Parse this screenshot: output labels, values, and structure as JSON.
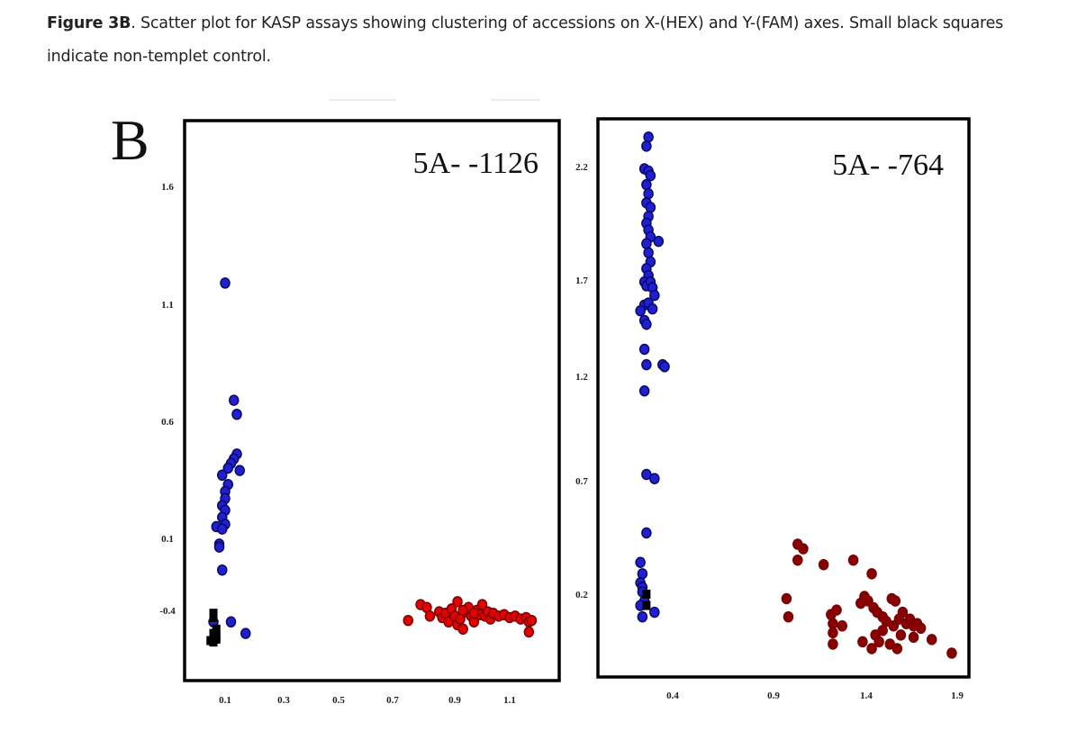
{
  "caption": {
    "label": "Figure 3B",
    "text": ". Scatter plot for KASP assays showing clustering of accessions on X-(HEX) and Y-(FAM) axes. Small black squares indicate non-templet control."
  },
  "panel_letter": "B",
  "colors": {
    "allele_fam": "#1f1fd6",
    "allele_fam_dark": "#0d0d7a",
    "allele_hex": "#e60000",
    "allele_hex_dark": "#8b0000",
    "ntc": "#000000",
    "frame": "#000000"
  },
  "chart_data": [
    {
      "type": "scatter",
      "title": "5A- -1126",
      "xlabel": "X-(HEX)",
      "ylabel": "Y-(FAM)",
      "x_ticks": [
        "0.1",
        "0.3",
        "0.5",
        "0.7",
        "0.9",
        "1.1"
      ],
      "y_ticks": [
        "1.6",
        "1.1",
        "0.6",
        "0.1",
        "-0.4"
      ],
      "xlim": [
        0.05,
        1.25
      ],
      "ylim": [
        -0.6,
        1.85
      ],
      "grid": false,
      "legend": "none",
      "series": [
        {
          "name": "FAM allele (blue)",
          "color_key": "allele_fam",
          "marker": "circle",
          "points": [
            [
              0.1,
              1.19
            ],
            [
              0.13,
              0.69
            ],
            [
              0.14,
              0.63
            ],
            [
              0.14,
              0.46
            ],
            [
              0.13,
              0.44
            ],
            [
              0.12,
              0.42
            ],
            [
              0.11,
              0.4
            ],
            [
              0.15,
              0.39
            ],
            [
              0.09,
              0.37
            ],
            [
              0.11,
              0.33
            ],
            [
              0.1,
              0.3
            ],
            [
              0.1,
              0.27
            ],
            [
              0.09,
              0.24
            ],
            [
              0.1,
              0.22
            ],
            [
              0.09,
              0.19
            ],
            [
              0.1,
              0.16
            ],
            [
              0.07,
              0.15
            ],
            [
              0.09,
              0.14
            ],
            [
              0.08,
              0.06
            ],
            [
              0.08,
              0.04
            ],
            [
              0.09,
              -0.12
            ],
            [
              0.06,
              -0.48
            ],
            [
              0.12,
              -0.48
            ],
            [
              0.17,
              -0.56
            ]
          ]
        },
        {
          "name": "HEX allele (red)",
          "color_key": "allele_hex",
          "marker": "circle",
          "points": [
            [
              0.75,
              -0.47
            ],
            [
              0.79,
              -0.36
            ],
            [
              0.81,
              -0.38
            ],
            [
              0.82,
              -0.44
            ],
            [
              0.85,
              -0.41
            ],
            [
              0.86,
              -0.45
            ],
            [
              0.87,
              -0.42
            ],
            [
              0.88,
              -0.48
            ],
            [
              0.89,
              -0.39
            ],
            [
              0.9,
              -0.44
            ],
            [
              0.91,
              -0.34
            ],
            [
              0.91,
              -0.5
            ],
            [
              0.92,
              -0.46
            ],
            [
              0.93,
              -0.53
            ],
            [
              0.94,
              -0.41
            ],
            [
              0.95,
              -0.38
            ],
            [
              0.96,
              -0.44
            ],
            [
              0.97,
              -0.48
            ],
            [
              0.98,
              -0.4
            ],
            [
              0.99,
              -0.43
            ],
            [
              1.0,
              -0.36
            ],
            [
              1.01,
              -0.44
            ],
            [
              1.02,
              -0.41
            ],
            [
              1.03,
              -0.46
            ],
            [
              1.04,
              -0.42
            ],
            [
              1.06,
              -0.44
            ],
            [
              1.08,
              -0.43
            ],
            [
              1.1,
              -0.45
            ],
            [
              1.12,
              -0.44
            ],
            [
              1.14,
              -0.46
            ],
            [
              1.16,
              -0.45
            ],
            [
              1.17,
              -0.48
            ],
            [
              1.18,
              -0.47
            ],
            [
              1.17,
              -0.55
            ],
            [
              0.97,
              -0.42
            ],
            [
              0.93,
              -0.4
            ]
          ]
        },
        {
          "name": "Non-template control",
          "color_key": "ntc",
          "marker": "square",
          "points": [
            [
              0.06,
              -0.42
            ],
            [
              0.06,
              -0.45
            ],
            [
              0.07,
              -0.53
            ],
            [
              0.06,
              -0.56
            ],
            [
              0.07,
              -0.58
            ],
            [
              0.05,
              -0.61
            ],
            [
              0.06,
              -0.62
            ],
            [
              0.07,
              -0.6
            ]
          ]
        }
      ]
    },
    {
      "type": "scatter",
      "title": "5A- -764",
      "xlabel": "X-(HEX)",
      "ylabel": "Y-(FAM)",
      "x_ticks": [
        "0.4",
        "0.9",
        "1.4",
        "1.9"
      ],
      "y_ticks": [
        "2.2",
        "1.7",
        "1.2",
        "0.7",
        "0.2"
      ],
      "xlim": [
        0.1,
        1.95
      ],
      "ylim": [
        -0.05,
        2.45
      ],
      "grid": false,
      "legend": "none",
      "series": [
        {
          "name": "FAM allele (blue)",
          "color_key": "allele_fam",
          "marker": "circle",
          "points": [
            [
              0.28,
              2.33
            ],
            [
              0.27,
              2.29
            ],
            [
              0.26,
              2.19
            ],
            [
              0.28,
              2.18
            ],
            [
              0.29,
              2.16
            ],
            [
              0.27,
              2.12
            ],
            [
              0.28,
              2.08
            ],
            [
              0.27,
              2.04
            ],
            [
              0.29,
              2.02
            ],
            [
              0.28,
              1.98
            ],
            [
              0.27,
              1.95
            ],
            [
              0.28,
              1.92
            ],
            [
              0.29,
              1.89
            ],
            [
              0.33,
              1.87
            ],
            [
              0.27,
              1.86
            ],
            [
              0.28,
              1.82
            ],
            [
              0.29,
              1.78
            ],
            [
              0.27,
              1.75
            ],
            [
              0.28,
              1.72
            ],
            [
              0.26,
              1.69
            ],
            [
              0.27,
              1.67
            ],
            [
              0.29,
              1.69
            ],
            [
              0.3,
              1.66
            ],
            [
              0.31,
              1.62
            ],
            [
              0.26,
              1.57
            ],
            [
              0.28,
              1.58
            ],
            [
              0.3,
              1.55
            ],
            [
              0.24,
              1.54
            ],
            [
              0.26,
              1.49
            ],
            [
              0.27,
              1.47
            ],
            [
              0.26,
              1.34
            ],
            [
              0.27,
              1.26
            ],
            [
              0.35,
              1.26
            ],
            [
              0.36,
              1.25
            ],
            [
              0.26,
              1.13
            ],
            [
              0.27,
              0.73
            ],
            [
              0.31,
              0.71
            ],
            [
              0.27,
              0.47
            ],
            [
              0.24,
              0.34
            ],
            [
              0.25,
              0.29
            ],
            [
              0.24,
              0.25
            ],
            [
              0.25,
              0.23
            ],
            [
              0.25,
              0.21
            ],
            [
              0.26,
              0.17
            ],
            [
              0.24,
              0.15
            ],
            [
              0.31,
              0.12
            ],
            [
              0.25,
              0.1
            ]
          ]
        },
        {
          "name": "HEX allele (red)",
          "color_key": "allele_hex_dark",
          "marker": "circle",
          "points": [
            [
              1.03,
              0.42
            ],
            [
              1.06,
              0.4
            ],
            [
              1.03,
              0.35
            ],
            [
              1.17,
              0.33
            ],
            [
              1.33,
              0.35
            ],
            [
              1.43,
              0.29
            ],
            [
              0.97,
              0.18
            ],
            [
              0.98,
              0.1
            ],
            [
              1.39,
              0.19
            ],
            [
              1.41,
              0.17
            ],
            [
              1.37,
              0.16
            ],
            [
              1.44,
              0.14
            ],
            [
              1.46,
              0.12
            ],
            [
              1.49,
              0.1
            ],
            [
              1.54,
              0.18
            ],
            [
              1.56,
              0.17
            ],
            [
              1.6,
              0.12
            ],
            [
              1.51,
              0.08
            ],
            [
              1.55,
              0.06
            ],
            [
              1.58,
              0.09
            ],
            [
              1.62,
              0.07
            ],
            [
              1.64,
              0.09
            ],
            [
              1.66,
              0.06
            ],
            [
              1.68,
              0.07
            ],
            [
              1.7,
              0.05
            ],
            [
              1.21,
              0.11
            ],
            [
              1.24,
              0.13
            ],
            [
              1.22,
              0.07
            ],
            [
              1.27,
              0.06
            ],
            [
              1.22,
              0.03
            ],
            [
              1.22,
              -0.02
            ],
            [
              1.38,
              -0.01
            ],
            [
              1.43,
              -0.04
            ],
            [
              1.45,
              0.02
            ],
            [
              1.47,
              -0.01
            ],
            [
              1.53,
              -0.02
            ],
            [
              1.57,
              -0.04
            ],
            [
              1.66,
              0.01
            ],
            [
              1.76,
              0.0
            ],
            [
              1.87,
              -0.06
            ],
            [
              1.59,
              0.02
            ],
            [
              1.49,
              0.04
            ]
          ]
        },
        {
          "name": "Non-template control",
          "color_key": "ntc",
          "marker": "square",
          "points": [
            [
              0.27,
              0.2
            ],
            [
              0.27,
              0.15
            ]
          ]
        }
      ]
    }
  ]
}
